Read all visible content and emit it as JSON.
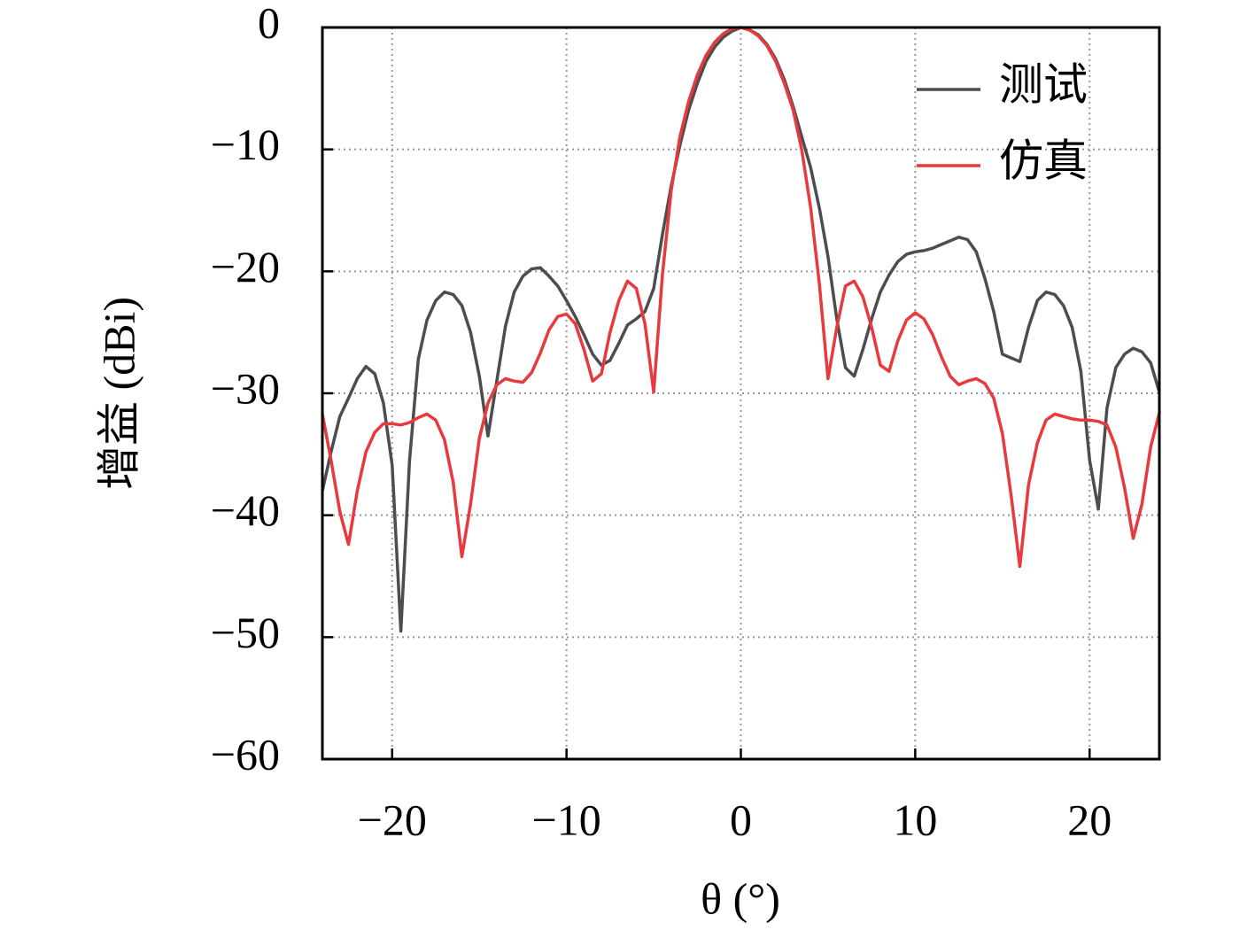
{
  "chart_data": {
    "type": "line",
    "xlabel": "θ (°)",
    "ylabel": "增益 (dBi)",
    "x": [
      -24,
      -23.5,
      -23,
      -22.5,
      -22,
      -21.5,
      -21,
      -20.5,
      -20,
      -19.5,
      -19,
      -18.5,
      -18,
      -17.5,
      -17,
      -16.5,
      -16,
      -15.5,
      -15,
      -14.5,
      -14,
      -13.5,
      -13,
      -12.5,
      -12,
      -11.5,
      -11,
      -10.5,
      -10,
      -9.5,
      -9,
      -8.5,
      -8,
      -7.5,
      -7,
      -6.5,
      -6,
      -5.5,
      -5,
      -4.5,
      -4,
      -3.5,
      -3,
      -2.5,
      -2,
      -1.5,
      -1,
      -0.5,
      0,
      0.5,
      1,
      1.5,
      2,
      2.5,
      3,
      3.5,
      4,
      4.5,
      5,
      5.5,
      6,
      6.5,
      7,
      7.5,
      8,
      8.5,
      9,
      9.5,
      10,
      10.5,
      11,
      11.5,
      12,
      12.5,
      13,
      13.5,
      14,
      14.5,
      15,
      15.5,
      16,
      16.5,
      17,
      17.5,
      18,
      18.5,
      19,
      19.5,
      20,
      20.5,
      21,
      21.5,
      22,
      22.5,
      23,
      23.5,
      24
    ],
    "series": [
      {
        "name": "测试",
        "color": "#4d4d4d",
        "values": [
          -38,
          -34.8,
          -31.9,
          -30.4,
          -28.8,
          -27.8,
          -28.4,
          -30.8,
          -35.9,
          -49.5,
          -35.5,
          -27.2,
          -24.0,
          -22.4,
          -21.7,
          -21.9,
          -22.8,
          -25,
          -28.6,
          -33.5,
          -29,
          -24.5,
          -21.7,
          -20.4,
          -19.8,
          -19.7,
          -20.4,
          -21.2,
          -22.4,
          -23.7,
          -25.2,
          -26.8,
          -27.7,
          -27.3,
          -25.9,
          -24.4,
          -23.9,
          -23.3,
          -21.4,
          -17,
          -13,
          -9.7,
          -6.8,
          -4.6,
          -2.8,
          -1.6,
          -0.8,
          -0.3,
          0,
          -0.2,
          -0.6,
          -1.4,
          -2.6,
          -4.3,
          -6.5,
          -9,
          -11.5,
          -14.8,
          -18.8,
          -23.9,
          -27.9,
          -28.6,
          -26.4,
          -23.9,
          -21.7,
          -20.3,
          -19.2,
          -18.6,
          -18.4,
          -18.3,
          -18.1,
          -17.8,
          -17.5,
          -17.2,
          -17.4,
          -18.4,
          -20.6,
          -23.3,
          -26.8,
          -27.1,
          -27.4,
          -24.6,
          -22.4,
          -21.7,
          -21.9,
          -22.8,
          -24.6,
          -28.2,
          -35.5,
          -39.5,
          -31.2,
          -27.9,
          -26.8,
          -26.3,
          -26.6,
          -27.5,
          -29.9
        ]
      },
      {
        "name": "仿真",
        "color": "#e8393c",
        "values": [
          -31.7,
          -35.5,
          -39.7,
          -42.4,
          -38,
          -34.8,
          -33.2,
          -32.5,
          -32.5,
          -32.6,
          -32.4,
          -32,
          -31.7,
          -32.2,
          -33.8,
          -37.3,
          -43.4,
          -39.1,
          -33.7,
          -30.8,
          -29.3,
          -28.8,
          -29,
          -29.1,
          -28.3,
          -26.7,
          -24.8,
          -23.7,
          -23.5,
          -24.3,
          -26.4,
          -29,
          -28.4,
          -25,
          -22.4,
          -20.8,
          -21.4,
          -24.3,
          -29.9,
          -20.3,
          -13.4,
          -9,
          -6.1,
          -3.9,
          -2.3,
          -1.2,
          -0.5,
          -0.1,
          0,
          -0.2,
          -0.7,
          -1.5,
          -2.8,
          -4.6,
          -6.8,
          -10.1,
          -14.8,
          -21,
          -28.8,
          -24.6,
          -21.2,
          -20.8,
          -22.1,
          -24.6,
          -27.7,
          -28.2,
          -25.7,
          -24,
          -23.4,
          -23.9,
          -25.2,
          -27,
          -28.6,
          -29.3,
          -29,
          -28.8,
          -29.2,
          -30.4,
          -33.3,
          -38.4,
          -44.2,
          -37.5,
          -34.1,
          -32.2,
          -31.7,
          -31.9,
          -32.1,
          -32.2,
          -32.2,
          -32.3,
          -32.6,
          -34.4,
          -37.7,
          -41.9,
          -39.1,
          -34.4,
          -31.6
        ]
      }
    ],
    "xlim": [
      -24,
      24
    ],
    "xticks": [
      {
        "value": -20,
        "label": "−20"
      },
      {
        "value": -10,
        "label": "−10"
      },
      0,
      10,
      20
    ],
    "ylim": [
      -60,
      0
    ],
    "yticks": [
      {
        "value": -60,
        "label": "−60"
      },
      {
        "value": -50,
        "label": "−50"
      },
      {
        "value": -40,
        "label": "−40"
      },
      {
        "value": -30,
        "label": "−30"
      },
      {
        "value": -20,
        "label": "−20"
      },
      {
        "value": -10,
        "label": "−10"
      },
      0
    ],
    "grid": true,
    "legend": "upper right"
  }
}
